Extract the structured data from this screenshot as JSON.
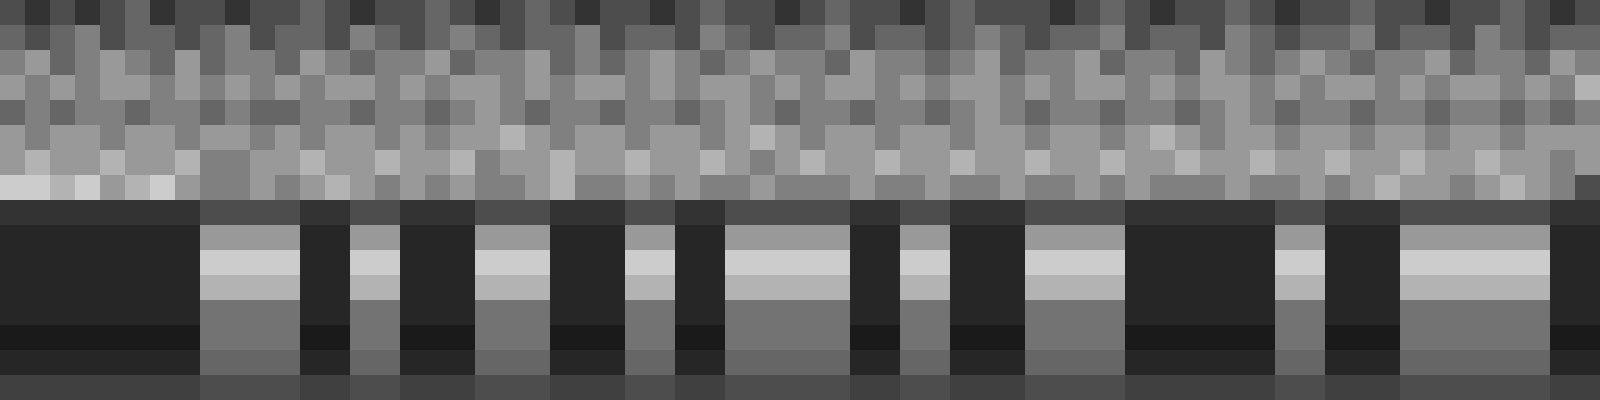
{
  "chart_data": {
    "type": "heatmap",
    "tick_labels": false,
    "cells": [
      [
        0.3,
        0.2,
        0.3,
        0.2,
        0.3,
        0.4,
        0.2,
        0.3,
        0.3,
        0.2,
        0.3,
        0.3,
        0.4,
        0.3,
        0.2,
        0.3,
        0.3,
        0.4,
        0.3,
        0.2,
        0.3,
        0.4,
        0.3,
        0.2,
        0.3,
        0.3,
        0.2,
        0.3,
        0.4,
        0.3,
        0.3,
        0.2,
        0.3,
        0.4,
        0.3,
        0.3,
        0.2,
        0.3,
        0.4,
        0.3,
        0.3,
        0.3,
        0.2,
        0.3,
        0.4,
        0.3,
        0.2,
        0.3,
        0.3,
        0.4,
        0.3,
        0.2,
        0.3,
        0.3,
        0.4,
        0.3,
        0.3,
        0.2,
        0.3,
        0.3,
        0.4,
        0.3,
        0.2,
        0.3
      ],
      [
        0.4,
        0.3,
        0.4,
        0.5,
        0.3,
        0.4,
        0.4,
        0.3,
        0.4,
        0.5,
        0.3,
        0.4,
        0.4,
        0.3,
        0.5,
        0.4,
        0.3,
        0.4,
        0.5,
        0.4,
        0.3,
        0.4,
        0.4,
        0.5,
        0.3,
        0.4,
        0.4,
        0.3,
        0.5,
        0.4,
        0.3,
        0.4,
        0.4,
        0.5,
        0.3,
        0.4,
        0.4,
        0.3,
        0.4,
        0.5,
        0.4,
        0.3,
        0.4,
        0.4,
        0.5,
        0.3,
        0.4,
        0.4,
        0.3,
        0.5,
        0.4,
        0.3,
        0.4,
        0.4,
        0.5,
        0.3,
        0.4,
        0.4,
        0.3,
        0.5,
        0.4,
        0.3,
        0.4,
        0.4
      ],
      [
        0.5,
        0.6,
        0.4,
        0.5,
        0.6,
        0.5,
        0.4,
        0.6,
        0.4,
        0.5,
        0.5,
        0.4,
        0.6,
        0.5,
        0.4,
        0.5,
        0.5,
        0.6,
        0.4,
        0.5,
        0.5,
        0.6,
        0.4,
        0.5,
        0.4,
        0.5,
        0.6,
        0.5,
        0.4,
        0.5,
        0.6,
        0.5,
        0.5,
        0.4,
        0.6,
        0.5,
        0.5,
        0.4,
        0.5,
        0.6,
        0.4,
        0.5,
        0.5,
        0.6,
        0.4,
        0.5,
        0.5,
        0.4,
        0.6,
        0.5,
        0.4,
        0.5,
        0.6,
        0.5,
        0.4,
        0.5,
        0.5,
        0.6,
        0.4,
        0.5,
        0.5,
        0.4,
        0.6,
        0.5
      ],
      [
        0.6,
        0.5,
        0.6,
        0.5,
        0.6,
        0.6,
        0.5,
        0.6,
        0.5,
        0.6,
        0.5,
        0.6,
        0.5,
        0.6,
        0.6,
        0.5,
        0.6,
        0.5,
        0.6,
        0.6,
        0.5,
        0.6,
        0.5,
        0.6,
        0.6,
        0.5,
        0.6,
        0.5,
        0.6,
        0.6,
        0.5,
        0.6,
        0.5,
        0.6,
        0.6,
        0.5,
        0.6,
        0.5,
        0.6,
        0.6,
        0.5,
        0.6,
        0.5,
        0.6,
        0.6,
        0.5,
        0.6,
        0.5,
        0.6,
        0.6,
        0.5,
        0.6,
        0.5,
        0.6,
        0.6,
        0.5,
        0.6,
        0.5,
        0.6,
        0.6,
        0.5,
        0.6,
        0.5,
        0.7
      ],
      [
        0.4,
        0.5,
        0.4,
        0.5,
        0.5,
        0.4,
        0.5,
        0.5,
        0.4,
        0.5,
        0.4,
        0.4,
        0.5,
        0.5,
        0.4,
        0.5,
        0.5,
        0.4,
        0.5,
        0.6,
        0.5,
        0.4,
        0.5,
        0.5,
        0.4,
        0.5,
        0.5,
        0.4,
        0.5,
        0.6,
        0.5,
        0.4,
        0.5,
        0.5,
        0.4,
        0.5,
        0.5,
        0.4,
        0.5,
        0.6,
        0.5,
        0.4,
        0.5,
        0.5,
        0.4,
        0.5,
        0.5,
        0.4,
        0.5,
        0.6,
        0.5,
        0.4,
        0.5,
        0.5,
        0.4,
        0.5,
        0.5,
        0.4,
        0.5,
        0.5,
        0.4,
        0.5,
        0.4,
        0.5
      ],
      [
        0.6,
        0.5,
        0.6,
        0.6,
        0.5,
        0.6,
        0.6,
        0.5,
        0.6,
        0.6,
        0.5,
        0.6,
        0.5,
        0.6,
        0.6,
        0.5,
        0.6,
        0.5,
        0.6,
        0.6,
        0.7,
        0.6,
        0.5,
        0.6,
        0.6,
        0.5,
        0.6,
        0.6,
        0.5,
        0.6,
        0.7,
        0.6,
        0.5,
        0.6,
        0.6,
        0.5,
        0.6,
        0.6,
        0.5,
        0.6,
        0.6,
        0.5,
        0.6,
        0.6,
        0.5,
        0.6,
        0.7,
        0.6,
        0.5,
        0.6,
        0.6,
        0.5,
        0.6,
        0.6,
        0.5,
        0.6,
        0.6,
        0.5,
        0.6,
        0.6,
        0.5,
        0.6,
        0.6,
        0.6
      ],
      [
        0.6,
        0.7,
        0.6,
        0.6,
        0.7,
        0.6,
        0.6,
        0.7,
        0.5,
        0.5,
        0.6,
        0.6,
        0.7,
        0.6,
        0.6,
        0.7,
        0.6,
        0.6,
        0.7,
        0.5,
        0.6,
        0.6,
        0.7,
        0.6,
        0.6,
        0.7,
        0.6,
        0.6,
        0.7,
        0.6,
        0.5,
        0.6,
        0.7,
        0.6,
        0.6,
        0.7,
        0.6,
        0.6,
        0.7,
        0.6,
        0.6,
        0.7,
        0.6,
        0.6,
        0.7,
        0.6,
        0.6,
        0.7,
        0.6,
        0.6,
        0.7,
        0.6,
        0.6,
        0.7,
        0.6,
        0.6,
        0.7,
        0.6,
        0.6,
        0.7,
        0.6,
        0.6,
        0.5,
        0.6
      ],
      [
        0.8,
        0.8,
        0.7,
        0.8,
        0.6,
        0.7,
        0.8,
        0.6,
        0.5,
        0.5,
        0.6,
        0.5,
        0.6,
        0.7,
        0.6,
        0.5,
        0.6,
        0.5,
        0.6,
        0.5,
        0.5,
        0.6,
        0.7,
        0.5,
        0.5,
        0.6,
        0.5,
        0.6,
        0.5,
        0.5,
        0.6,
        0.5,
        0.5,
        0.5,
        0.6,
        0.5,
        0.5,
        0.6,
        0.5,
        0.5,
        0.6,
        0.5,
        0.5,
        0.6,
        0.5,
        0.6,
        0.5,
        0.5,
        0.5,
        0.6,
        0.5,
        0.5,
        0.6,
        0.5,
        0.6,
        0.7,
        0.6,
        0.6,
        0.5,
        0.6,
        0.7,
        0.6,
        0.5,
        0.3
      ],
      [
        0.2,
        0.2,
        0.2,
        0.2,
        0.2,
        0.2,
        0.2,
        0.2,
        0.3,
        0.3,
        0.3,
        0.3,
        0.2,
        0.2,
        0.3,
        0.3,
        0.2,
        0.2,
        0.2,
        0.3,
        0.3,
        0.3,
        0.2,
        0.2,
        0.2,
        0.3,
        0.3,
        0.2,
        0.2,
        0.3,
        0.3,
        0.3,
        0.3,
        0.3,
        0.2,
        0.2,
        0.3,
        0.3,
        0.2,
        0.2,
        0.2,
        0.3,
        0.3,
        0.3,
        0.3,
        0.2,
        0.2,
        0.2,
        0.2,
        0.2,
        0.2,
        0.3,
        0.3,
        0.2,
        0.2,
        0.2,
        0.3,
        0.3,
        0.3,
        0.3,
        0.3,
        0.3,
        0.2,
        0.2
      ],
      [
        0.15,
        0.15,
        0.15,
        0.15,
        0.15,
        0.15,
        0.15,
        0.15,
        0.6,
        0.6,
        0.6,
        0.6,
        0.15,
        0.15,
        0.6,
        0.6,
        0.15,
        0.15,
        0.15,
        0.6,
        0.6,
        0.6,
        0.15,
        0.15,
        0.15,
        0.6,
        0.6,
        0.15,
        0.15,
        0.6,
        0.6,
        0.6,
        0.6,
        0.6,
        0.15,
        0.15,
        0.6,
        0.6,
        0.15,
        0.15,
        0.15,
        0.6,
        0.6,
        0.6,
        0.6,
        0.15,
        0.15,
        0.15,
        0.15,
        0.15,
        0.15,
        0.6,
        0.6,
        0.15,
        0.15,
        0.15,
        0.6,
        0.6,
        0.6,
        0.6,
        0.6,
        0.6,
        0.15,
        0.15
      ],
      [
        0.15,
        0.15,
        0.15,
        0.15,
        0.15,
        0.15,
        0.15,
        0.15,
        0.8,
        0.8,
        0.8,
        0.8,
        0.15,
        0.15,
        0.8,
        0.8,
        0.15,
        0.15,
        0.15,
        0.8,
        0.8,
        0.8,
        0.15,
        0.15,
        0.15,
        0.8,
        0.8,
        0.15,
        0.15,
        0.8,
        0.8,
        0.8,
        0.8,
        0.8,
        0.15,
        0.15,
        0.8,
        0.8,
        0.15,
        0.15,
        0.15,
        0.8,
        0.8,
        0.8,
        0.8,
        0.15,
        0.15,
        0.15,
        0.15,
        0.15,
        0.15,
        0.8,
        0.8,
        0.15,
        0.15,
        0.15,
        0.8,
        0.8,
        0.8,
        0.8,
        0.8,
        0.8,
        0.15,
        0.15
      ],
      [
        0.15,
        0.15,
        0.15,
        0.15,
        0.15,
        0.15,
        0.15,
        0.15,
        0.7,
        0.7,
        0.7,
        0.7,
        0.15,
        0.15,
        0.7,
        0.7,
        0.15,
        0.15,
        0.15,
        0.7,
        0.7,
        0.7,
        0.15,
        0.15,
        0.15,
        0.7,
        0.7,
        0.15,
        0.15,
        0.7,
        0.7,
        0.7,
        0.7,
        0.7,
        0.15,
        0.15,
        0.7,
        0.7,
        0.15,
        0.15,
        0.15,
        0.7,
        0.7,
        0.7,
        0.7,
        0.15,
        0.15,
        0.15,
        0.15,
        0.15,
        0.15,
        0.7,
        0.7,
        0.15,
        0.15,
        0.15,
        0.7,
        0.7,
        0.7,
        0.7,
        0.7,
        0.7,
        0.15,
        0.15
      ],
      [
        0.15,
        0.15,
        0.15,
        0.15,
        0.15,
        0.15,
        0.15,
        0.15,
        0.45,
        0.45,
        0.45,
        0.45,
        0.15,
        0.15,
        0.45,
        0.45,
        0.15,
        0.15,
        0.15,
        0.45,
        0.45,
        0.45,
        0.15,
        0.15,
        0.15,
        0.45,
        0.45,
        0.15,
        0.15,
        0.45,
        0.45,
        0.45,
        0.45,
        0.45,
        0.15,
        0.15,
        0.45,
        0.45,
        0.15,
        0.15,
        0.15,
        0.45,
        0.45,
        0.45,
        0.45,
        0.15,
        0.15,
        0.15,
        0.15,
        0.15,
        0.15,
        0.45,
        0.45,
        0.15,
        0.15,
        0.15,
        0.45,
        0.45,
        0.45,
        0.45,
        0.45,
        0.45,
        0.15,
        0.15
      ],
      [
        0.1,
        0.1,
        0.1,
        0.1,
        0.1,
        0.1,
        0.1,
        0.1,
        0.45,
        0.45,
        0.45,
        0.45,
        0.1,
        0.1,
        0.45,
        0.45,
        0.1,
        0.1,
        0.1,
        0.45,
        0.45,
        0.45,
        0.1,
        0.1,
        0.1,
        0.45,
        0.45,
        0.1,
        0.1,
        0.45,
        0.45,
        0.45,
        0.45,
        0.45,
        0.1,
        0.1,
        0.45,
        0.45,
        0.1,
        0.1,
        0.1,
        0.45,
        0.45,
        0.45,
        0.45,
        0.1,
        0.1,
        0.1,
        0.1,
        0.1,
        0.1,
        0.45,
        0.45,
        0.1,
        0.1,
        0.1,
        0.45,
        0.45,
        0.45,
        0.45,
        0.45,
        0.45,
        0.1,
        0.1
      ],
      [
        0.15,
        0.15,
        0.15,
        0.15,
        0.15,
        0.15,
        0.15,
        0.15,
        0.4,
        0.4,
        0.4,
        0.4,
        0.15,
        0.15,
        0.4,
        0.4,
        0.15,
        0.15,
        0.15,
        0.4,
        0.4,
        0.4,
        0.15,
        0.15,
        0.15,
        0.4,
        0.4,
        0.15,
        0.15,
        0.4,
        0.4,
        0.4,
        0.4,
        0.4,
        0.15,
        0.15,
        0.4,
        0.4,
        0.15,
        0.15,
        0.15,
        0.4,
        0.4,
        0.4,
        0.4,
        0.15,
        0.15,
        0.15,
        0.15,
        0.15,
        0.15,
        0.4,
        0.4,
        0.15,
        0.15,
        0.15,
        0.4,
        0.4,
        0.4,
        0.4,
        0.4,
        0.4,
        0.15,
        0.15
      ],
      [
        0.25,
        0.25,
        0.25,
        0.25,
        0.25,
        0.25,
        0.25,
        0.25,
        0.3,
        0.3,
        0.3,
        0.3,
        0.25,
        0.25,
        0.3,
        0.3,
        0.25,
        0.25,
        0.25,
        0.3,
        0.3,
        0.3,
        0.25,
        0.25,
        0.25,
        0.3,
        0.3,
        0.25,
        0.25,
        0.3,
        0.3,
        0.3,
        0.3,
        0.3,
        0.25,
        0.25,
        0.3,
        0.3,
        0.25,
        0.25,
        0.25,
        0.3,
        0.3,
        0.3,
        0.3,
        0.25,
        0.25,
        0.25,
        0.25,
        0.25,
        0.25,
        0.3,
        0.3,
        0.25,
        0.25,
        0.25,
        0.3,
        0.3,
        0.3,
        0.3,
        0.3,
        0.3,
        0.25,
        0.25
      ]
    ]
  }
}
